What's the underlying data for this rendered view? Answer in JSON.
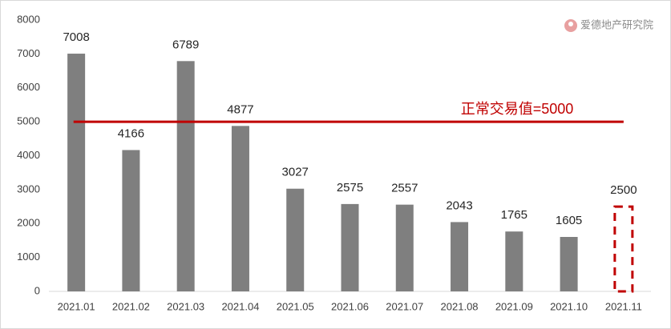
{
  "chart_data": {
    "type": "bar",
    "categories": [
      "2021.01",
      "2021.02",
      "2021.03",
      "2021.04",
      "2021.05",
      "2021.06",
      "2021.07",
      "2021.08",
      "2021.09",
      "2021.10",
      "2021.11"
    ],
    "values": [
      7008,
      4166,
      6789,
      4877,
      3027,
      2575,
      2557,
      2043,
      1765,
      1605,
      2500
    ],
    "bar_styles": [
      "solid",
      "solid",
      "solid",
      "solid",
      "solid",
      "solid",
      "solid",
      "solid",
      "solid",
      "solid",
      "dashed"
    ],
    "color": "#7f7f7f",
    "dashed_color": "#c00000",
    "ylim": [
      0,
      8000
    ],
    "yticks": [
      0,
      1000,
      2000,
      3000,
      4000,
      5000,
      6000,
      7000,
      8000
    ],
    "grid": false,
    "reference_line": {
      "value": 5000,
      "label": "正常交易值=5000",
      "color": "#c00000"
    },
    "watermark": "爱德地产研究院"
  }
}
